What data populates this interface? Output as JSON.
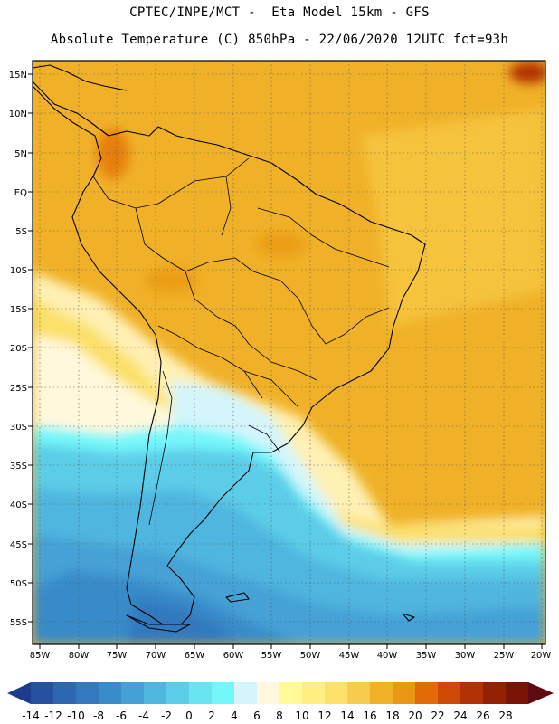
{
  "header": {
    "line1": "CPTEC/INPE/MCT -  Eta Model 15km - GFS",
    "line2": "Absolute Temperature (C) 850hPa - 22/06/2020 12UTC fct=93h"
  },
  "map": {
    "lat_labels": [
      "15N",
      "10N",
      "5N",
      "EQ",
      "5S",
      "10S",
      "15S",
      "20S",
      "25S",
      "30S",
      "35S",
      "40S",
      "45S",
      "50S",
      "55S"
    ],
    "lon_labels": [
      "85W",
      "80W",
      "75W",
      "70W",
      "65W",
      "60W",
      "55W",
      "50W",
      "45W",
      "40W",
      "35W",
      "30W",
      "25W",
      "20W"
    ]
  },
  "colorbar": {
    "labels": [
      "-14",
      "-12",
      "-10",
      "-8",
      "-6",
      "-4",
      "-2",
      "0",
      "2",
      "4",
      "6",
      "8",
      "10",
      "12",
      "14",
      "16",
      "18",
      "20",
      "22",
      "24",
      "26",
      "28"
    ],
    "colors": [
      "#1e3c8c",
      "#25529e",
      "#2d67b2",
      "#3279bf",
      "#398bc9",
      "#44a1d6",
      "#4fb6df",
      "#5ccde8",
      "#68e4f1",
      "#74f7fb",
      "#d4f5fb",
      "#fff8dc",
      "#fffa96",
      "#ffef82",
      "#fbe06a",
      "#f6cc4f",
      "#f0b128",
      "#ea9814",
      "#e26a08",
      "#cc4a06",
      "#b23205",
      "#942104",
      "#7a1406",
      "#5e0a10"
    ]
  }
}
